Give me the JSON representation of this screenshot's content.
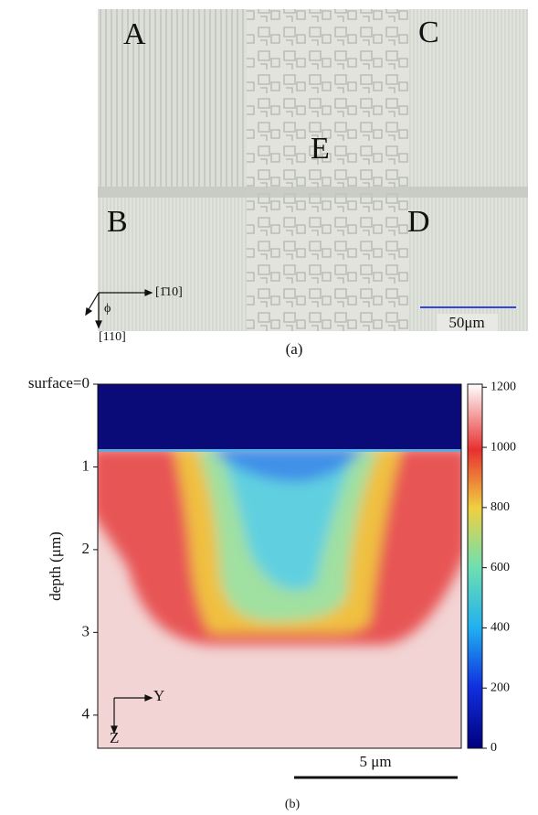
{
  "panel_a": {
    "labels": [
      "A",
      "B",
      "C",
      "D",
      "E"
    ],
    "direction_right": "[1̄10]",
    "direction_down": "[110]",
    "angle": "ϕ",
    "scale_bar": "50μm",
    "caption": "(a)"
  },
  "chart_data": {
    "type": "heatmap",
    "ylabel": "depth (μm)",
    "ylim": [
      0,
      4.4
    ],
    "yticks": [
      {
        "value": 0,
        "label": "surface=0"
      },
      1,
      2,
      3,
      4
    ],
    "colorbar": {
      "lim": [
        0,
        1210
      ],
      "ticks": [
        0,
        200,
        400,
        600,
        800,
        1000,
        1200
      ]
    },
    "scale_bar": "5 μm",
    "axis_right": "Y",
    "axis_down": "Z",
    "caption": "(b)"
  }
}
